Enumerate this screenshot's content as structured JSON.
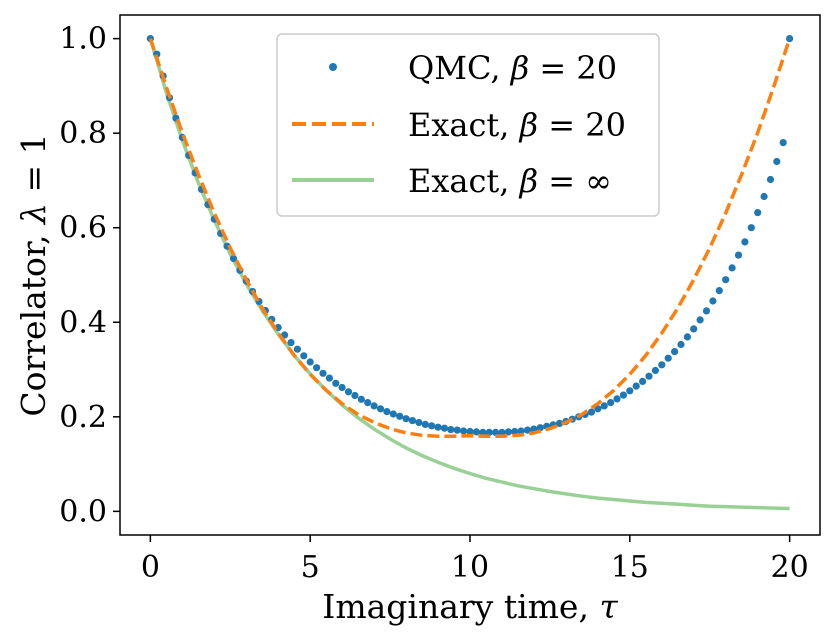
{
  "chart_data": {
    "type": "line",
    "title": "",
    "xlabel": {
      "text": "Imaginary time, ",
      "symbol": "τ"
    },
    "ylabel": {
      "text": "Correlator, ",
      "symbol": "λ",
      "suffix": " = 1"
    },
    "xlim": [
      -0.95,
      20.95
    ],
    "ylim": [
      -0.05,
      1.05
    ],
    "xticks": [
      0,
      5,
      10,
      15,
      20
    ],
    "xtick_labels": [
      "0",
      "5",
      "10",
      "15",
      "20"
    ],
    "yticks": [
      0.0,
      0.2,
      0.4,
      0.6,
      0.8,
      1.0
    ],
    "ytick_labels": [
      "0.0",
      "0.2",
      "0.4",
      "0.6",
      "0.8",
      "1.0"
    ],
    "grid": false,
    "legend_position": "top-center",
    "colors": {
      "qmc": "#1f77b4",
      "exact20": "#ff7f0e",
      "exactInf": "#98d095"
    },
    "series": [
      {
        "name": "QMC, β = 20",
        "legend_text": "QMC, ",
        "legend_symbol": "β",
        "legend_value": " = 20",
        "style": "markers",
        "x": [
          0.0,
          0.2,
          0.4,
          0.6,
          0.8,
          1.0,
          1.2,
          1.4,
          1.6,
          1.8,
          2.0,
          2.2,
          2.4,
          2.6,
          2.8,
          3.0,
          3.2,
          3.4,
          3.6,
          3.8,
          4.0,
          4.2,
          4.4,
          4.6,
          4.8,
          5.0,
          5.2,
          5.4,
          5.6,
          5.8,
          6.0,
          6.2,
          6.4,
          6.6,
          6.8,
          7.0,
          7.2,
          7.4,
          7.6,
          7.8,
          8.0,
          8.2,
          8.4,
          8.6,
          8.8,
          9.0,
          9.2,
          9.4,
          9.6,
          9.8,
          10.0,
          10.2,
          10.4,
          10.6,
          10.8,
          11.0,
          11.2,
          11.4,
          11.6,
          11.8,
          12.0,
          12.2,
          12.4,
          12.6,
          12.8,
          13.0,
          13.2,
          13.4,
          13.6,
          13.8,
          14.0,
          14.2,
          14.4,
          14.6,
          14.8,
          15.0,
          15.2,
          15.4,
          15.6,
          15.8,
          16.0,
          16.2,
          16.4,
          16.6,
          16.8,
          17.0,
          17.2,
          17.4,
          17.6,
          17.8,
          18.0,
          18.2,
          18.4,
          18.6,
          18.8,
          19.0,
          19.2,
          19.4,
          19.6,
          19.8,
          20.0
        ],
        "y": [
          1.0,
          0.967,
          0.921,
          0.875,
          0.832,
          0.791,
          0.753,
          0.716,
          0.681,
          0.649,
          0.618,
          0.588,
          0.561,
          0.535,
          0.51,
          0.487,
          0.465,
          0.444,
          0.425,
          0.406,
          0.389,
          0.373,
          0.357,
          0.343,
          0.329,
          0.316,
          0.304,
          0.292,
          0.282,
          0.271,
          0.262,
          0.253,
          0.245,
          0.237,
          0.23,
          0.223,
          0.217,
          0.211,
          0.206,
          0.201,
          0.196,
          0.192,
          0.188,
          0.184,
          0.181,
          0.178,
          0.176,
          0.173,
          0.172,
          0.17,
          0.169,
          0.168,
          0.167,
          0.167,
          0.167,
          0.167,
          0.168,
          0.169,
          0.17,
          0.172,
          0.174,
          0.177,
          0.18,
          0.183,
          0.186,
          0.19,
          0.195,
          0.2,
          0.205,
          0.21,
          0.217,
          0.223,
          0.23,
          0.238,
          0.246,
          0.255,
          0.265,
          0.275,
          0.286,
          0.298,
          0.31,
          0.324,
          0.338,
          0.353,
          0.369,
          0.386,
          0.405,
          0.424,
          0.445,
          0.467,
          0.49,
          0.515,
          0.542,
          0.57,
          0.6,
          0.632,
          0.666,
          0.702,
          0.74,
          0.78,
          1.0
        ]
      },
      {
        "name": "Exact, β = 20",
        "legend_text": "Exact, ",
        "legend_symbol": "β",
        "legend_value": " = 20",
        "style": "dashed",
        "x": [
          0,
          0.5,
          1,
          1.5,
          2,
          2.5,
          3,
          3.5,
          4,
          4.5,
          5,
          5.5,
          6,
          6.5,
          7,
          7.5,
          8,
          8.5,
          9,
          9.5,
          10,
          10.5,
          11,
          11.5,
          12,
          12.5,
          13,
          13.5,
          14,
          14.5,
          15,
          15.5,
          16,
          16.5,
          17,
          17.5,
          18,
          18.5,
          19,
          19.5,
          20
        ],
        "y": [
          1.0,
          0.898,
          0.801,
          0.713,
          0.631,
          0.557,
          0.49,
          0.43,
          0.377,
          0.33,
          0.29,
          0.256,
          0.228,
          0.205,
          0.188,
          0.175,
          0.166,
          0.161,
          0.159,
          0.159,
          0.16,
          0.159,
          0.159,
          0.161,
          0.166,
          0.175,
          0.188,
          0.205,
          0.228,
          0.256,
          0.29,
          0.33,
          0.377,
          0.43,
          0.49,
          0.557,
          0.631,
          0.713,
          0.801,
          0.898,
          1.0
        ]
      },
      {
        "name": "Exact, β = ∞",
        "legend_text": "Exact, ",
        "legend_symbol": "β",
        "legend_value": " = ∞",
        "style": "solid",
        "x": [
          0,
          0.5,
          1,
          1.5,
          2,
          2.5,
          3,
          3.5,
          4,
          4.5,
          5,
          5.5,
          6,
          6.5,
          7,
          7.5,
          8,
          8.5,
          9,
          9.5,
          10,
          10.5,
          11,
          11.5,
          12,
          12.5,
          13,
          13.5,
          14,
          14.5,
          15,
          15.5,
          16,
          16.5,
          17,
          17.5,
          18,
          18.5,
          19,
          19.5,
          20
        ],
        "y": [
          1.0,
          0.886,
          0.785,
          0.695,
          0.616,
          0.544,
          0.481,
          0.425,
          0.375,
          0.33,
          0.291,
          0.256,
          0.225,
          0.198,
          0.174,
          0.153,
          0.134,
          0.118,
          0.104,
          0.091,
          0.08,
          0.07,
          0.062,
          0.054,
          0.048,
          0.042,
          0.037,
          0.032,
          0.028,
          0.025,
          0.022,
          0.019,
          0.017,
          0.015,
          0.013,
          0.011,
          0.01,
          0.009,
          0.008,
          0.007,
          0.006
        ]
      }
    ]
  }
}
